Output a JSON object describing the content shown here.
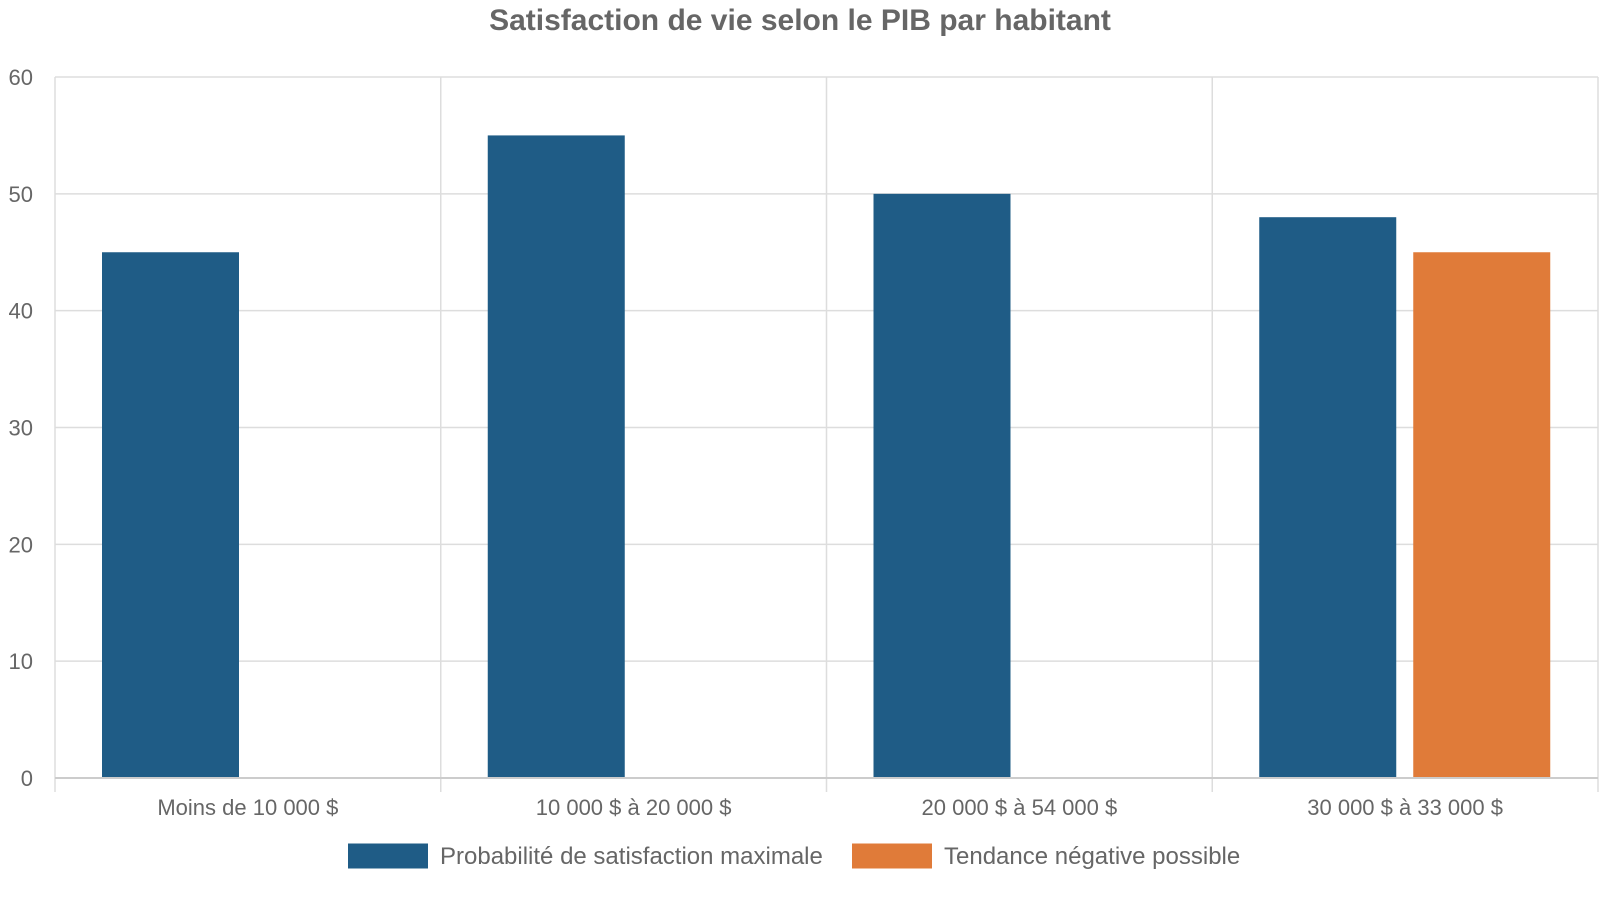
{
  "chart_data": {
    "type": "bar",
    "title": "Satisfaction de vie selon le PIB par habitant",
    "xlabel": "",
    "ylabel": "",
    "categories": [
      "Moins de 10 000 $",
      "10 000 $ à 20 000 $",
      "20 000 $ à 54 000 $",
      "30 000 $ à 33 000 $"
    ],
    "series": [
      {
        "name": "Probabilité de satisfaction maximale",
        "color": "#1f5c86",
        "values": [
          45,
          55,
          50,
          48
        ]
      },
      {
        "name": "Tendance négative possible",
        "color": "#e07b39",
        "values": [
          null,
          null,
          null,
          45
        ]
      }
    ],
    "ylim": [
      0,
      60
    ],
    "yticks": [
      0,
      10,
      20,
      30,
      40,
      50,
      60
    ],
    "grid": true,
    "legend_position": "bottom"
  }
}
